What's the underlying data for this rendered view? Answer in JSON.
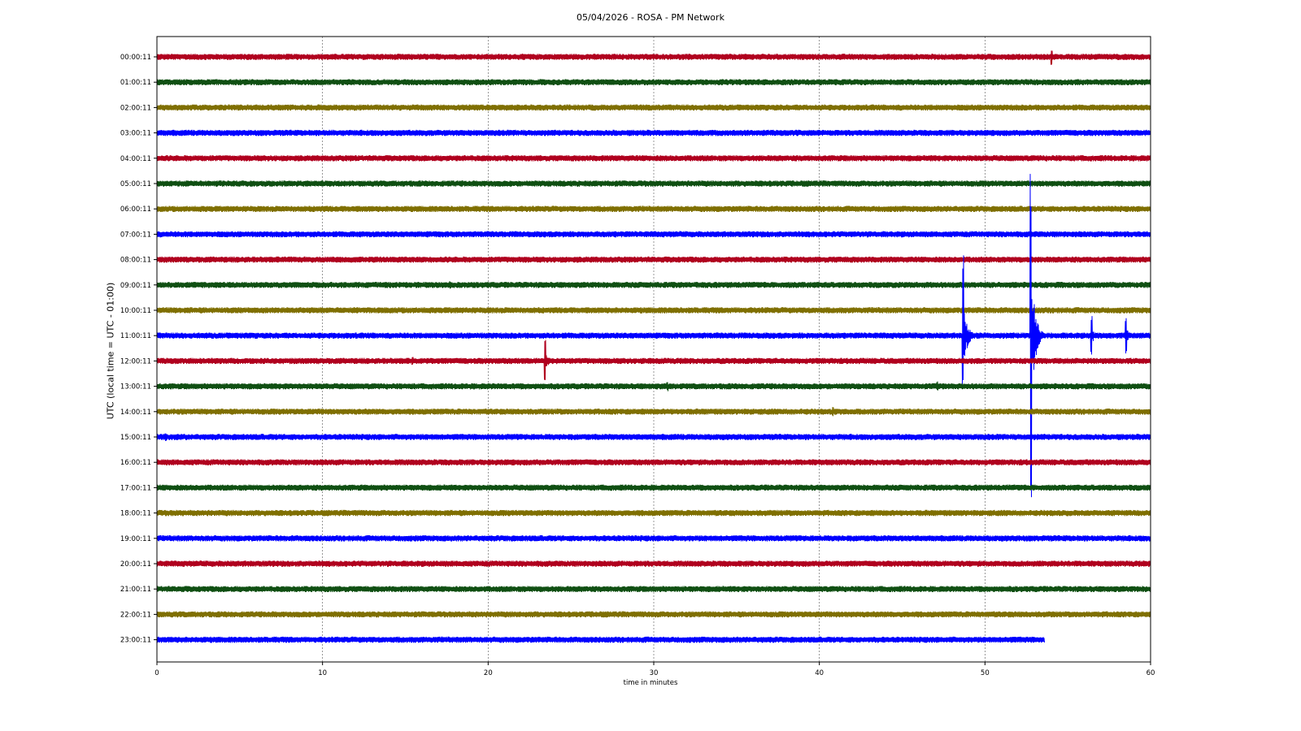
{
  "chart_data": {
    "type": "line",
    "title": "05/04/2026 - ROSA - PM Network",
    "xlabel": "time in minutes",
    "ylabel": "UTC (local time = UTC - 01:00)",
    "xlim": [
      0,
      60
    ],
    "x_ticks": [
      "0",
      "10",
      "20",
      "30",
      "40",
      "50",
      "60"
    ],
    "grid": "vertical dotted at each 10 minutes",
    "row_colors": [
      "#b0001e",
      "#0f4f12",
      "#7f6f00",
      "#0000ff"
    ],
    "rows": [
      {
        "label": "00:00:11",
        "color": "#b0001e",
        "end_minute": 60,
        "events": [
          {
            "minute": 54.0,
            "amp": 10
          }
        ]
      },
      {
        "label": "01:00:11",
        "color": "#0f4f12",
        "end_minute": 60,
        "events": []
      },
      {
        "label": "02:00:11",
        "color": "#7f6f00",
        "end_minute": 60,
        "events": []
      },
      {
        "label": "03:00:11",
        "color": "#0000ff",
        "end_minute": 60,
        "events": [
          {
            "minute": 38.6,
            "amp": 4
          }
        ]
      },
      {
        "label": "04:00:11",
        "color": "#b0001e",
        "end_minute": 60,
        "events": []
      },
      {
        "label": "05:00:11",
        "color": "#0f4f12",
        "end_minute": 60,
        "events": []
      },
      {
        "label": "06:00:11",
        "color": "#7f6f00",
        "end_minute": 60,
        "events": []
      },
      {
        "label": "07:00:11",
        "color": "#0000ff",
        "end_minute": 60,
        "events": []
      },
      {
        "label": "08:00:11",
        "color": "#b0001e",
        "end_minute": 60,
        "events": []
      },
      {
        "label": "09:00:11",
        "color": "#0f4f12",
        "end_minute": 60,
        "events": [
          {
            "minute": 17.7,
            "amp": 5
          }
        ]
      },
      {
        "label": "10:00:11",
        "color": "#7f6f00",
        "end_minute": 60,
        "events": [
          {
            "minute": 4.6,
            "amp": 4
          }
        ]
      },
      {
        "label": "11:00:11",
        "color": "#0000ff",
        "end_minute": 60,
        "events": [
          {
            "minute": 48.65,
            "amp": 105,
            "up": 105,
            "down": 70
          },
          {
            "minute": 52.75,
            "amp": 215,
            "up": 210,
            "down": 215
          },
          {
            "minute": 56.4,
            "amp": 25
          },
          {
            "minute": 58.5,
            "amp": 22
          }
        ]
      },
      {
        "label": "12:00:11",
        "color": "#b0001e",
        "end_minute": 60,
        "events": [
          {
            "minute": 15.4,
            "amp": 5
          },
          {
            "minute": 23.4,
            "amp": 28
          },
          {
            "minute": 29.3,
            "amp": 4
          }
        ]
      },
      {
        "label": "13:00:11",
        "color": "#0f4f12",
        "end_minute": 60,
        "events": [
          {
            "minute": 30.8,
            "amp": 6
          },
          {
            "minute": 47.1,
            "amp": 6
          }
        ]
      },
      {
        "label": "14:00:11",
        "color": "#7f6f00",
        "end_minute": 60,
        "events": [
          {
            "minute": 40.8,
            "amp": 6
          }
        ]
      },
      {
        "label": "15:00:11",
        "color": "#0000ff",
        "end_minute": 60,
        "events": [
          {
            "minute": 0.5,
            "amp": 5
          }
        ]
      },
      {
        "label": "16:00:11",
        "color": "#b0001e",
        "end_minute": 60,
        "events": []
      },
      {
        "label": "17:00:11",
        "color": "#0f4f12",
        "end_minute": 60,
        "events": []
      },
      {
        "label": "18:00:11",
        "color": "#7f6f00",
        "end_minute": 60,
        "events": []
      },
      {
        "label": "19:00:11",
        "color": "#0000ff",
        "end_minute": 60,
        "events": []
      },
      {
        "label": "20:00:11",
        "color": "#b0001e",
        "end_minute": 60,
        "events": []
      },
      {
        "label": "21:00:11",
        "color": "#0f4f12",
        "end_minute": 60,
        "events": []
      },
      {
        "label": "22:00:11",
        "color": "#7f6f00",
        "end_minute": 60,
        "events": []
      },
      {
        "label": "23:00:11",
        "color": "#0000ff",
        "end_minute": 53.6,
        "events": []
      }
    ]
  }
}
